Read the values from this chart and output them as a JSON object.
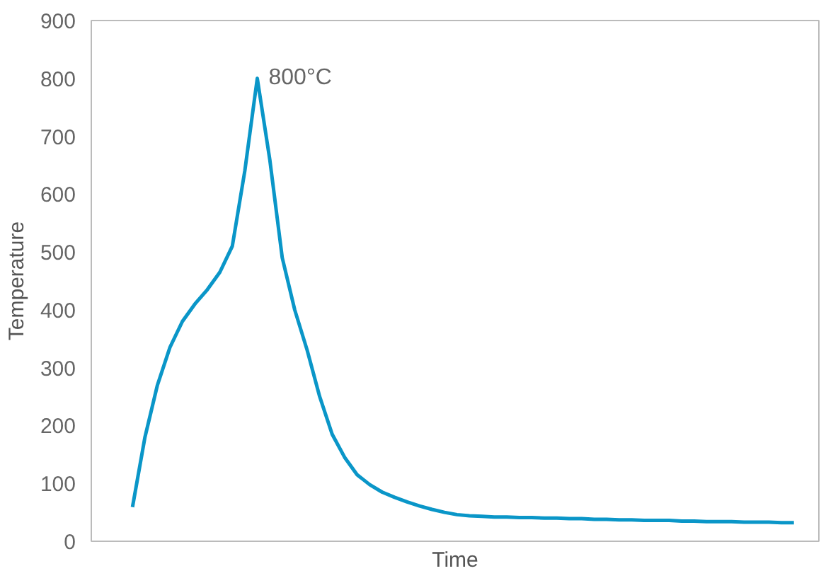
{
  "chart_data": {
    "type": "line",
    "xlabel": "Time",
    "ylabel": "Temperature",
    "categories": [
      null,
      null,
      null,
      null,
      null,
      null,
      null,
      null,
      null,
      null,
      null,
      null,
      null,
      null,
      null,
      null,
      null,
      null,
      null,
      null,
      null,
      null,
      null,
      null,
      null,
      null,
      null,
      null,
      null,
      null,
      null,
      null,
      null,
      null,
      null,
      null,
      null,
      null,
      null,
      null,
      null,
      null,
      null,
      null,
      null,
      null,
      null,
      null,
      null,
      null,
      null,
      null,
      null,
      null
    ],
    "series": [
      {
        "color": "#0a96c8",
        "values": [
          59,
          180,
          270,
          335,
          380,
          410,
          435,
          465,
          510,
          640,
          800,
          660,
          490,
          400,
          330,
          250,
          185,
          145,
          115,
          98,
          85,
          76,
          68,
          61,
          55,
          50,
          46,
          44,
          43,
          42,
          42,
          41,
          41,
          40,
          40,
          39,
          39,
          38,
          38,
          37,
          37,
          36,
          36,
          36,
          35,
          35,
          34,
          34,
          34,
          33,
          33,
          33,
          32,
          32
        ]
      }
    ],
    "ylim": [
      0,
      900
    ],
    "yticks": [
      0,
      100,
      200,
      300,
      400,
      500,
      600,
      700,
      800,
      900
    ],
    "tick_labels": "y",
    "grid": false,
    "marker": "none",
    "line_style": "solid",
    "annotations": [
      "800°C"
    ]
  }
}
